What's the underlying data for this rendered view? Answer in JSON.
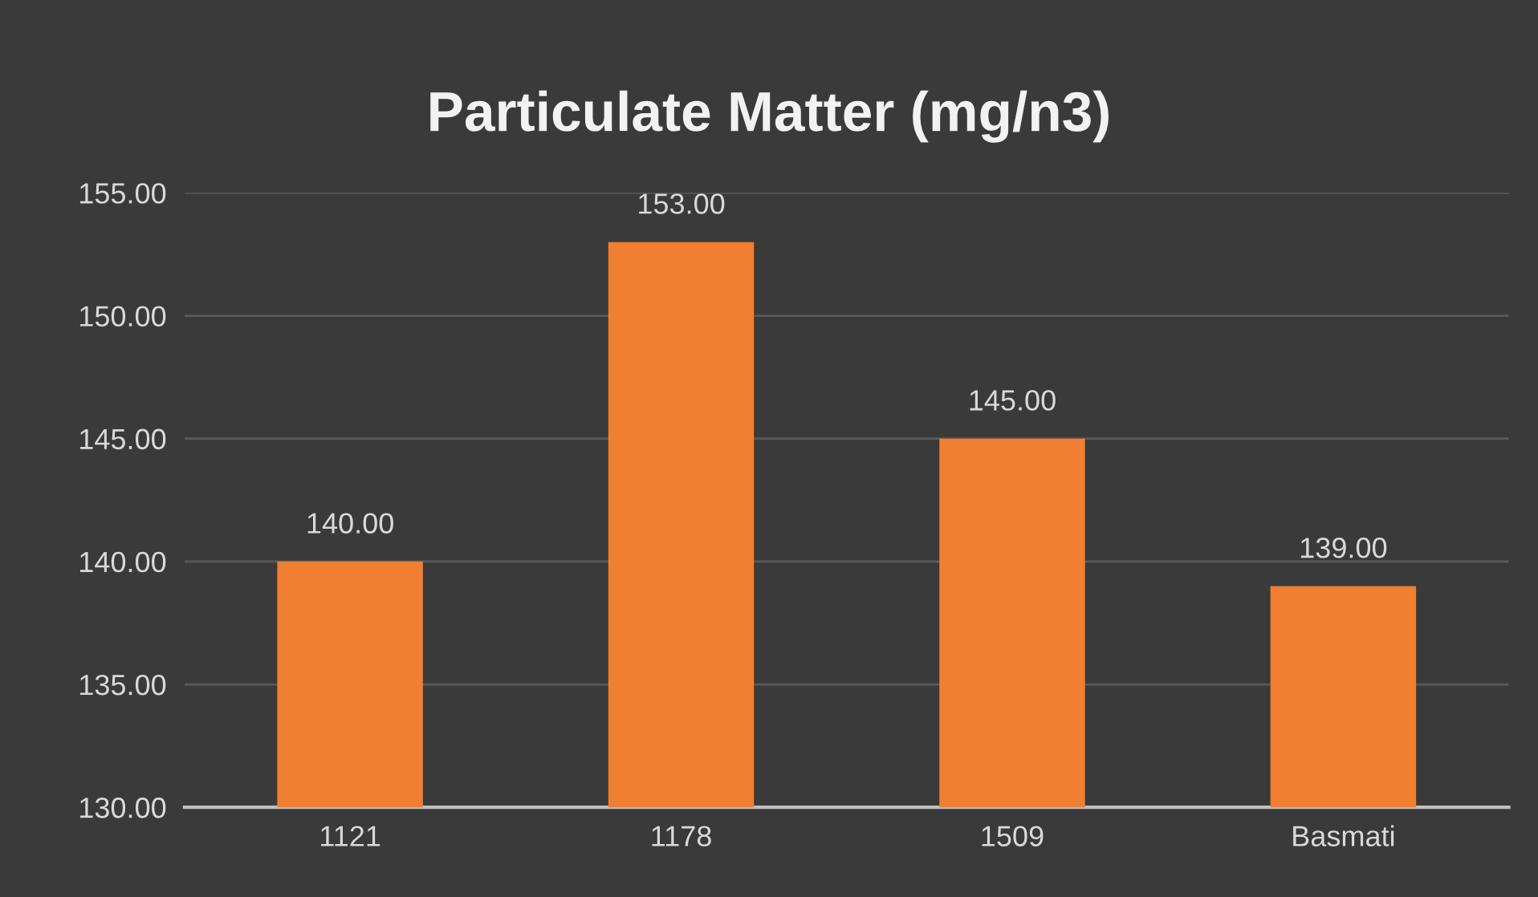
{
  "chart_data": {
    "type": "bar",
    "title": "Particulate Matter (mg/n3)",
    "categories": [
      "1121",
      "1178",
      "1509",
      "Basmati"
    ],
    "values": [
      140,
      153,
      145,
      139
    ],
    "color": "#f07f32",
    "value_labels": [
      "140.00",
      "153.00",
      "145.00",
      "139.00"
    ],
    "ylim": [
      130,
      155
    ],
    "yticks": [
      {
        "value": 130,
        "label": "130.00"
      },
      {
        "value": 135,
        "label": "135.00"
      },
      {
        "value": 140,
        "label": "140.00"
      },
      {
        "value": 145,
        "label": "145.00"
      },
      {
        "value": 150,
        "label": "150.00"
      },
      {
        "value": 155,
        "label": "155.00"
      }
    ],
    "grid": "y",
    "legend": false
  }
}
